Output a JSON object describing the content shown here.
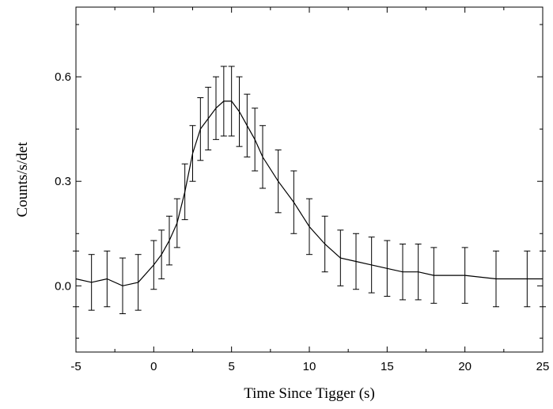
{
  "chart_data": {
    "type": "line",
    "title": "",
    "xlabel": "Time Since Tigger (s)",
    "ylabel": "Counts/s/det",
    "xlim": [
      -5,
      25
    ],
    "ylim": [
      -0.19,
      0.8
    ],
    "xticks": [
      "-5",
      "0",
      "5",
      "10",
      "15",
      "20",
      "25"
    ],
    "yticks": [
      "0.0",
      "0.3",
      "0.6"
    ],
    "grid": false,
    "legend": "none",
    "line_color": "#000000",
    "series": [
      {
        "x": [
          -5.0,
          -4.0,
          -3.0,
          -2.0,
          -1.0,
          0.0,
          0.5,
          1.0,
          1.5,
          2.0,
          2.5,
          3.0,
          3.5,
          4.0,
          4.5,
          5.0,
          5.5,
          6.0,
          6.5,
          7.0,
          8.0,
          9.0,
          10.0,
          11.0,
          12.0,
          13.0,
          14.0,
          15.0,
          16.0,
          17.0,
          18.0,
          20.0,
          22.0,
          24.0,
          25.0
        ],
        "y": [
          0.02,
          0.01,
          0.02,
          0.0,
          0.01,
          0.06,
          0.09,
          0.13,
          0.18,
          0.27,
          0.38,
          0.45,
          0.48,
          0.51,
          0.53,
          0.53,
          0.5,
          0.46,
          0.42,
          0.37,
          0.3,
          0.24,
          0.17,
          0.12,
          0.08,
          0.07,
          0.06,
          0.05,
          0.04,
          0.04,
          0.03,
          0.03,
          0.02,
          0.02,
          0.02
        ],
        "error": [
          0.08,
          0.08,
          0.08,
          0.08,
          0.08,
          0.07,
          0.07,
          0.07,
          0.07,
          0.08,
          0.08,
          0.09,
          0.09,
          0.09,
          0.1,
          0.1,
          0.1,
          0.09,
          0.09,
          0.09,
          0.09,
          0.09,
          0.08,
          0.08,
          0.08,
          0.08,
          0.08,
          0.08,
          0.08,
          0.08,
          0.08,
          0.08,
          0.08,
          0.08,
          0.08
        ]
      }
    ]
  }
}
